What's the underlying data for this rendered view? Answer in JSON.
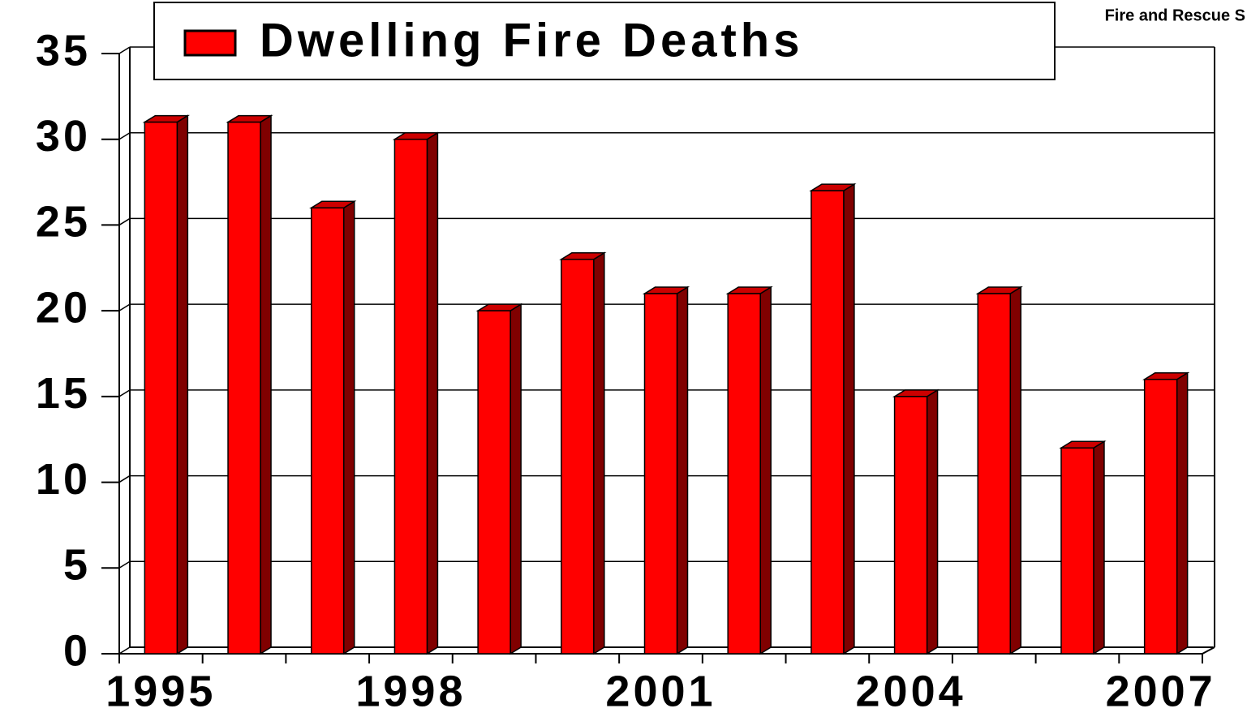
{
  "chart_data": {
    "type": "bar",
    "legend_label": "Dwelling Fire Deaths",
    "annotation": "Fire and Rescue S",
    "categories": [
      "1995",
      null,
      null,
      "1998",
      null,
      null,
      "2001",
      null,
      null,
      "2004",
      null,
      null,
      "2007"
    ],
    "values": [
      31,
      31,
      26,
      30,
      20,
      23,
      21,
      21,
      27,
      15,
      21,
      12,
      16
    ],
    "color": "#ff0000",
    "ylim": [
      0,
      35
    ],
    "yticks": [
      0,
      5,
      10,
      15,
      20,
      25,
      30,
      35
    ],
    "grid": true
  }
}
